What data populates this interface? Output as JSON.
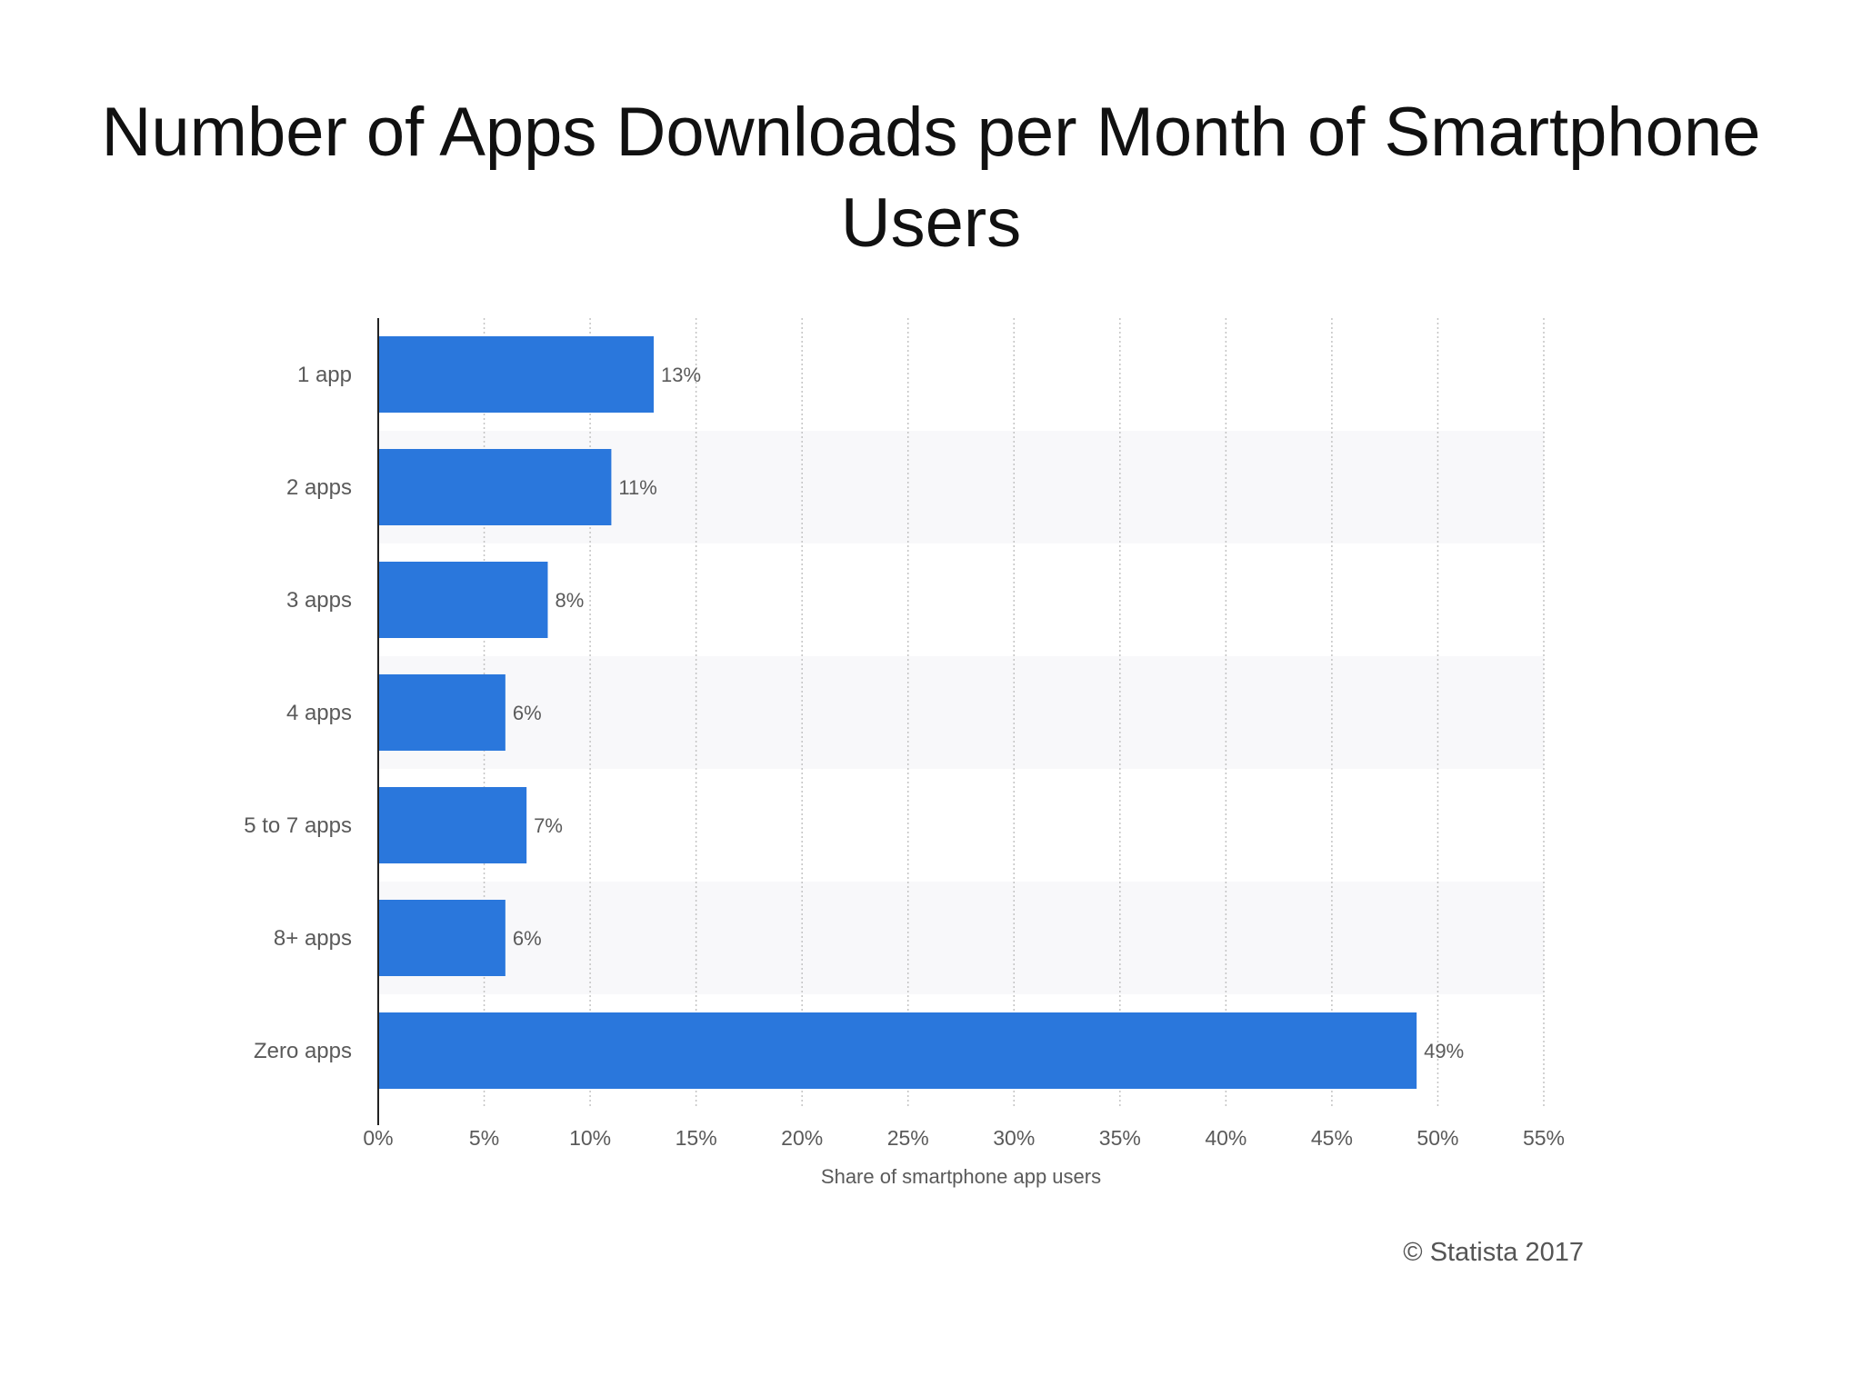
{
  "slide": {
    "title": "Number of Apps Downloads per Month of Smartphone Users",
    "source": "© Statista 2017"
  },
  "chart_data": {
    "type": "bar",
    "orientation": "horizontal",
    "categories": [
      "1 app",
      "2 apps",
      "3 apps",
      "4 apps",
      "5 to 7 apps",
      "8+ apps",
      "Zero apps"
    ],
    "values": [
      13,
      11,
      8,
      6,
      7,
      6,
      49
    ],
    "data_labels": [
      "13%",
      "11%",
      "8%",
      "6%",
      "7%",
      "6%",
      "49%"
    ],
    "xlabel": "Share of smartphone app users",
    "ylabel": "",
    "xlim": [
      0,
      55
    ],
    "x_ticks": [
      0,
      5,
      10,
      15,
      20,
      25,
      30,
      35,
      40,
      45,
      50,
      55
    ],
    "x_tick_labels": [
      "0%",
      "5%",
      "10%",
      "15%",
      "20%",
      "25%",
      "30%",
      "35%",
      "40%",
      "45%",
      "50%",
      "55%"
    ],
    "grid": "vertical dotted",
    "bar_color": "#2a77dc",
    "stripe_color": "#f8f8fa",
    "legend": "none"
  }
}
